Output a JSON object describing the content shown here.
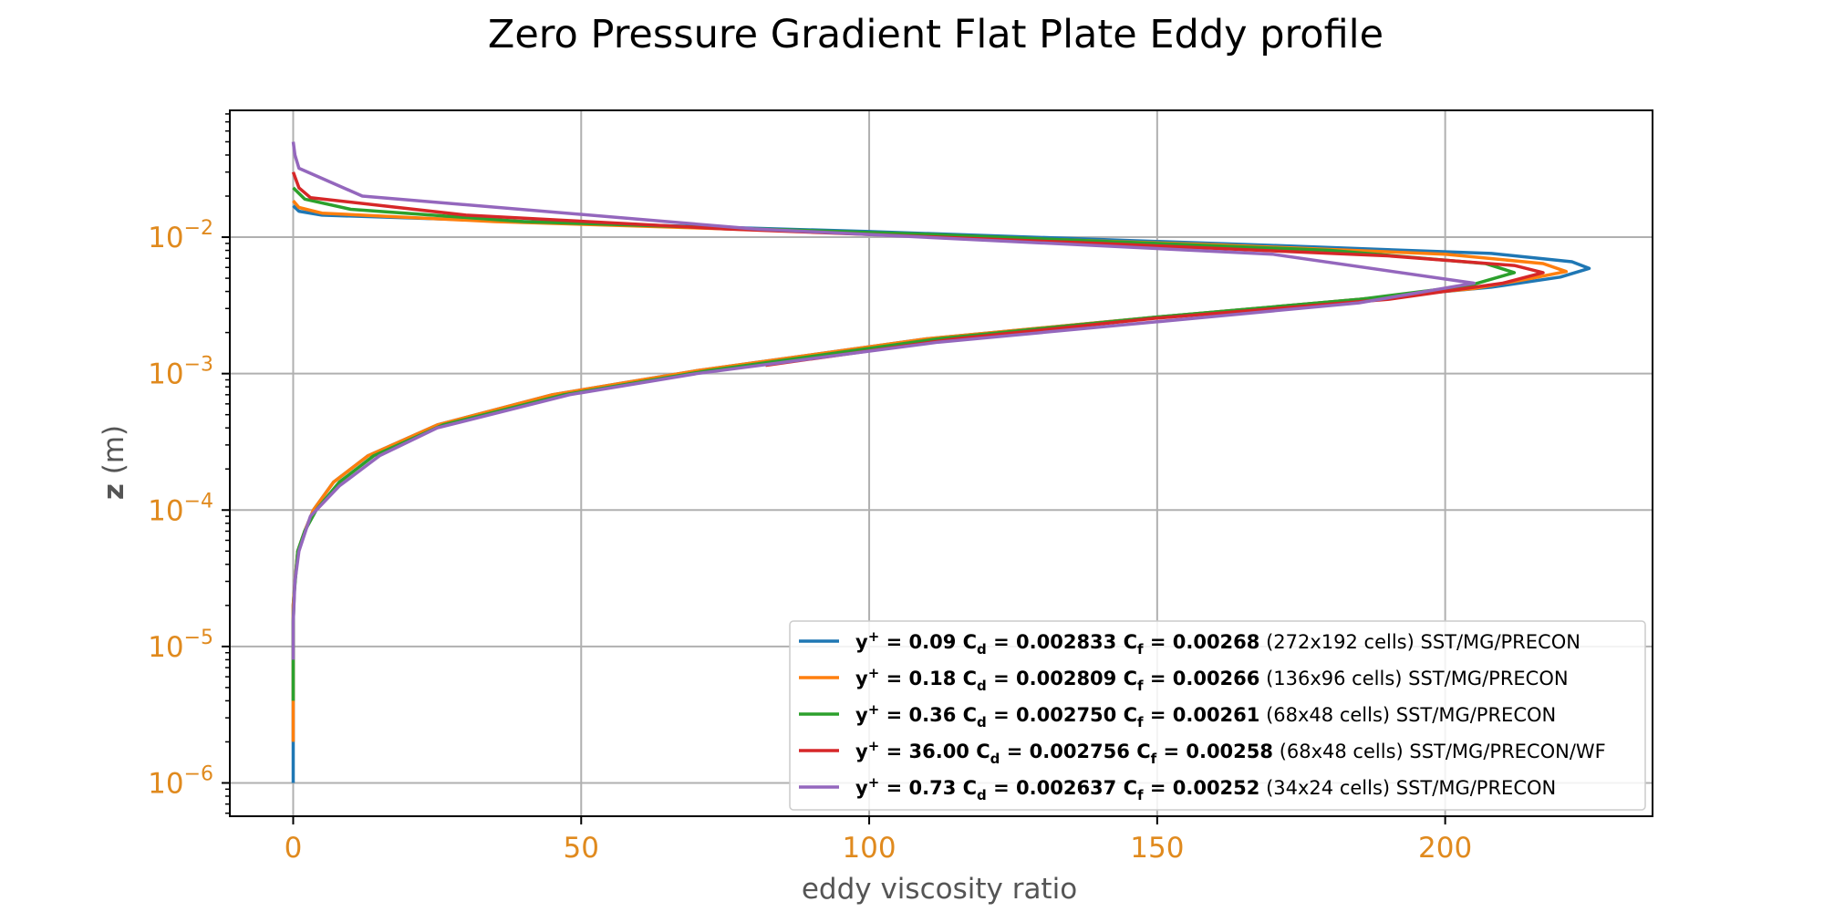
{
  "chart_data": {
    "type": "line",
    "title": "Zero Pressure Gradient Flat Plate Eddy profile",
    "xlabel": "eddy viscosity ratio",
    "ylabel_bold": "z",
    "ylabel_rest": " (m)",
    "xlim": [
      -11,
      236
    ],
    "ylim": [
      5.7e-07,
      0.085
    ],
    "yscale": "log",
    "grid": true,
    "legend_position": "lower-right",
    "x_ticks": [
      0,
      50,
      100,
      150,
      200
    ],
    "x_tick_labels": [
      "0",
      "50",
      "100",
      "150",
      "200"
    ],
    "y_ticks": [
      1e-06,
      1e-05,
      0.0001,
      0.001,
      0.01
    ],
    "y_tick_labels": [
      {
        "base": "10",
        "exp": "−6"
      },
      {
        "base": "10",
        "exp": "−5"
      },
      {
        "base": "10",
        "exp": "−4"
      },
      {
        "base": "10",
        "exp": "−3"
      },
      {
        "base": "10",
        "exp": "−2"
      }
    ],
    "series": [
      {
        "name": "y+ = 0.09 Cd = 0.002833 Cf = 0.00268 (272x192 cells) SST/MG/PRECON",
        "legend": {
          "yplus": "0.09",
          "cd": "0.002833",
          "cf": "0.00268",
          "rest": " (272x192 cells) SST/MG/PRECON"
        },
        "color": "#1f77b4",
        "points": [
          [
            0,
            1e-06
          ],
          [
            0,
            3e-06
          ],
          [
            0,
            1e-05
          ],
          [
            0,
            2e-05
          ],
          [
            0.3,
            3e-05
          ],
          [
            0.8,
            5e-05
          ],
          [
            2,
            7e-05
          ],
          [
            3.5,
            0.0001
          ],
          [
            7,
            0.00016
          ],
          [
            13,
            0.00025
          ],
          [
            25,
            0.00042
          ],
          [
            45,
            0.0007
          ],
          [
            70,
            0.00105
          ],
          [
            110,
            0.0018
          ],
          [
            150,
            0.0026
          ],
          [
            185,
            0.0035
          ],
          [
            208,
            0.0043
          ],
          [
            220,
            0.0051
          ],
          [
            225,
            0.0059
          ],
          [
            222,
            0.0066
          ],
          [
            208,
            0.0076
          ],
          [
            170,
            0.0087
          ],
          [
            100,
            0.011
          ],
          [
            40,
            0.013
          ],
          [
            5,
            0.0145
          ],
          [
            1,
            0.0155
          ],
          [
            0,
            0.017
          ]
        ]
      },
      {
        "name": "y+ = 0.18 Cd = 0.002809 Cf = 0.00266 (136x96 cells) SST/MG/PRECON",
        "legend": {
          "yplus": "0.18",
          "cd": "0.002809",
          "cf": "0.00266",
          "rest": " (136x96 cells) SST/MG/PRECON"
        },
        "color": "#ff7f0e",
        "points": [
          [
            0,
            2e-06
          ],
          [
            0,
            4e-06
          ],
          [
            0,
            1e-05
          ],
          [
            0,
            2e-05
          ],
          [
            0.3,
            3e-05
          ],
          [
            0.8,
            5e-05
          ],
          [
            2,
            7e-05
          ],
          [
            3.5,
            0.0001
          ],
          [
            7,
            0.00016
          ],
          [
            13,
            0.00025
          ],
          [
            25,
            0.00042
          ],
          [
            45,
            0.0007
          ],
          [
            70,
            0.00105
          ],
          [
            110,
            0.0018
          ],
          [
            150,
            0.0026
          ],
          [
            185,
            0.0035
          ],
          [
            205,
            0.0042
          ],
          [
            215,
            0.005
          ],
          [
            221,
            0.0056
          ],
          [
            217,
            0.0064
          ],
          [
            200,
            0.0075
          ],
          [
            160,
            0.0088
          ],
          [
            90,
            0.011
          ],
          [
            35,
            0.013
          ],
          [
            5,
            0.015
          ],
          [
            1,
            0.0165
          ],
          [
            0,
            0.0185
          ]
        ]
      },
      {
        "name": "y+ = 0.36 Cd = 0.002750 Cf = 0.00261 (68x48 cells) SST/MG/PRECON",
        "legend": {
          "yplus": "0.36",
          "cd": "0.002750",
          "cf": "0.00261",
          "rest": " (68x48 cells) SST/MG/PRECON"
        },
        "color": "#2ca02c",
        "points": [
          [
            0,
            4e-06
          ],
          [
            0,
            8e-06
          ],
          [
            0,
            1.5e-05
          ],
          [
            0.2,
            2.5e-05
          ],
          [
            0.8,
            5e-05
          ],
          [
            2,
            7e-05
          ],
          [
            4,
            0.0001
          ],
          [
            8,
            0.00016
          ],
          [
            14,
            0.00025
          ],
          [
            26,
            0.00042
          ],
          [
            47,
            0.0007
          ],
          [
            72,
            0.00105
          ],
          [
            112,
            0.0018
          ],
          [
            150,
            0.0026
          ],
          [
            185,
            0.0035
          ],
          [
            204,
            0.0044
          ],
          [
            212,
            0.0055
          ],
          [
            207,
            0.0064
          ],
          [
            180,
            0.008
          ],
          [
            110,
            0.0105
          ],
          [
            40,
            0.013
          ],
          [
            10,
            0.016
          ],
          [
            2,
            0.019
          ],
          [
            0,
            0.023
          ]
        ]
      },
      {
        "name": "y+ = 36.00 Cd = 0.002756 Cf = 0.00258 (68x48 cells) SST/MG/PRECON/WF",
        "legend": {
          "yplus": "36.00",
          "cd": "0.002756",
          "cf": "0.00258",
          "rest": " (68x48 cells) SST/MG/PRECON/WF"
        },
        "color": "#d62728",
        "points": [
          [
            82,
            0.00115
          ],
          [
            115,
            0.0018
          ],
          [
            150,
            0.00255
          ],
          [
            190,
            0.0035
          ],
          [
            210,
            0.0046
          ],
          [
            217,
            0.0055
          ],
          [
            212,
            0.0062
          ],
          [
            190,
            0.0073
          ],
          [
            140,
            0.009
          ],
          [
            75,
            0.0115
          ],
          [
            30,
            0.0145
          ],
          [
            3,
            0.0195
          ],
          [
            1,
            0.023
          ],
          [
            0,
            0.03
          ]
        ]
      },
      {
        "name": "y+ = 0.73 Cd = 0.002637 Cf = 0.00252 (34x24 cells) SST/MG/PRECON",
        "legend": {
          "yplus": "0.73",
          "cd": "0.002637",
          "cf": "0.00252",
          "rest": " (34x24 cells) SST/MG/PRECON"
        },
        "color": "#9467bd",
        "points": [
          [
            0,
            8e-06
          ],
          [
            0,
            1.5e-05
          ],
          [
            0.3,
            3e-05
          ],
          [
            1,
            5e-05
          ],
          [
            3,
            9e-05
          ],
          [
            8,
            0.00015
          ],
          [
            15,
            0.00025
          ],
          [
            25,
            0.0004
          ],
          [
            48,
            0.0007
          ],
          [
            70,
            0.001
          ],
          [
            112,
            0.0017
          ],
          [
            150,
            0.0024
          ],
          [
            185,
            0.0033
          ],
          [
            205,
            0.0046
          ],
          [
            170,
            0.0075
          ],
          [
            80,
            0.0115
          ],
          [
            12,
            0.02
          ],
          [
            1,
            0.032
          ],
          [
            0.3,
            0.04
          ],
          [
            0,
            0.05
          ]
        ]
      }
    ]
  }
}
